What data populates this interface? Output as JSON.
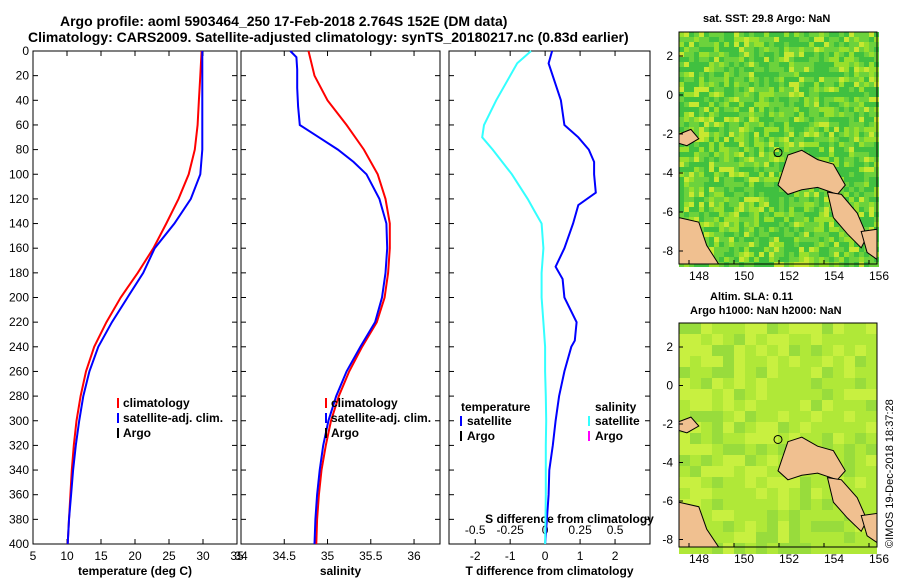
{
  "header": {
    "line1": "Argo profile: aoml 5903464_250 17-Feb-2018 2.764S 152E (DM data)",
    "line2": "Climatology: CARS2009. Satellite-adjusted climatology: synTS_20180217.nc (0.83d earlier)"
  },
  "credit": "©IMOS 19-Dec-2018 18:37:28",
  "colors": {
    "red": "#ff0000",
    "blue": "#0000ff",
    "black": "#000000",
    "cyan": "#33ffff",
    "magenta": "#ff00ff"
  },
  "chart_data": [
    {
      "name": "temperature-profile",
      "type": "line",
      "xlabel": "temperature (deg C)",
      "ylabel": "",
      "xlim": [
        5,
        35
      ],
      "ylim": [
        400,
        0
      ],
      "xticks": [
        5,
        10,
        15,
        20,
        25,
        30,
        35
      ],
      "yticks": [
        0,
        20,
        40,
        60,
        80,
        100,
        120,
        140,
        160,
        180,
        200,
        220,
        240,
        260,
        280,
        300,
        320,
        340,
        360,
        380,
        400
      ],
      "legend": [
        "climatology",
        "satellite-adj. clim.",
        "Argo"
      ],
      "legend_colors": [
        "#ff0000",
        "#0000ff",
        "#000000"
      ],
      "series": [
        {
          "name": "climatology",
          "color": "#ff0000",
          "depth": [
            0,
            20,
            40,
            60,
            80,
            100,
            120,
            140,
            160,
            180,
            200,
            220,
            240,
            260,
            280,
            300,
            320,
            340,
            360,
            380,
            400
          ],
          "values": [
            29.8,
            29.6,
            29.4,
            29.2,
            28.8,
            27.9,
            26.4,
            24.6,
            22.7,
            20.4,
            17.9,
            15.8,
            14.0,
            12.8,
            12.0,
            11.4,
            11.0,
            10.7,
            10.5,
            10.3,
            10.1
          ]
        },
        {
          "name": "satellite-adj. clim.",
          "color": "#0000ff",
          "depth": [
            0,
            20,
            40,
            60,
            80,
            100,
            120,
            140,
            160,
            180,
            200,
            220,
            240,
            260,
            280,
            300,
            320,
            340,
            360,
            380,
            400
          ],
          "values": [
            29.9,
            29.9,
            29.9,
            29.9,
            29.9,
            29.6,
            28.2,
            25.8,
            22.9,
            21.2,
            18.9,
            16.6,
            14.6,
            13.3,
            12.4,
            11.8,
            11.3,
            10.9,
            10.6,
            10.3,
            10.1
          ]
        }
      ]
    },
    {
      "name": "salinity-profile",
      "type": "line",
      "xlabel": "salinity",
      "xlim": [
        34,
        36.3
      ],
      "ylim": [
        400,
        0
      ],
      "xticks": [
        34,
        34.5,
        35,
        35.5,
        36
      ],
      "legend": [
        "climatology",
        "satellite-adj. clim.",
        "Argo"
      ],
      "legend_colors": [
        "#ff0000",
        "#0000ff",
        "#000000"
      ],
      "series": [
        {
          "name": "climatology",
          "color": "#ff0000",
          "depth": [
            0,
            20,
            40,
            60,
            80,
            100,
            120,
            140,
            160,
            180,
            200,
            220,
            240,
            260,
            280,
            300,
            320,
            340,
            360,
            380,
            400
          ],
          "values": [
            34.78,
            34.85,
            35.0,
            35.22,
            35.42,
            35.58,
            35.67,
            35.72,
            35.72,
            35.7,
            35.66,
            35.57,
            35.4,
            35.25,
            35.13,
            35.04,
            34.98,
            34.93,
            34.9,
            34.88,
            34.87
          ]
        },
        {
          "name": "satellite-adj. clim.",
          "color": "#0000ff",
          "depth": [
            0,
            5,
            15,
            30,
            45,
            60,
            70,
            80,
            90,
            100,
            120,
            140,
            160,
            180,
            200,
            220,
            240,
            260,
            280,
            300,
            320,
            340,
            360,
            380,
            400
          ],
          "values": [
            34.57,
            34.64,
            34.65,
            34.65,
            34.66,
            34.68,
            34.9,
            35.12,
            35.3,
            35.45,
            35.6,
            35.68,
            35.69,
            35.67,
            35.63,
            35.55,
            35.38,
            35.22,
            35.1,
            35.01,
            34.95,
            34.91,
            34.88,
            34.86,
            34.85
          ]
        }
      ]
    },
    {
      "name": "difference-profile",
      "type": "line",
      "xlabel": "T difference from climatology",
      "top_axis_label": "S difference from climatology",
      "xlim": [
        -2.75,
        3
      ],
      "ylim": [
        400,
        0
      ],
      "xticks": [
        -2,
        -1,
        0,
        1,
        2
      ],
      "top_ticks": [
        "-0.5",
        "-0.25",
        "0",
        "0.25",
        "0.5"
      ],
      "top_tick_positions": [
        -2,
        -1,
        0,
        1,
        2
      ],
      "legend_left_title": "temperature",
      "legend_left": [
        "satellite",
        "Argo"
      ],
      "legend_left_colors": [
        "#0000ff",
        "#000000"
      ],
      "legend_right_title": "salinity",
      "legend_right": [
        "satellite",
        "Argo"
      ],
      "legend_right_colors": [
        "#33ffff",
        "#ff00ff"
      ],
      "series": [
        {
          "name": "temperature satellite",
          "color": "#0000ff",
          "depth": [
            0,
            10,
            40,
            60,
            70,
            80,
            90,
            100,
            115,
            125,
            140,
            160,
            175,
            185,
            200,
            220,
            235,
            240,
            260,
            280,
            300,
            320,
            340,
            360,
            380,
            400
          ],
          "values": [
            0.2,
            0.1,
            0.45,
            0.55,
            0.95,
            1.25,
            1.4,
            1.4,
            1.45,
            0.95,
            0.8,
            0.55,
            0.3,
            0.5,
            0.55,
            0.9,
            0.85,
            0.75,
            0.55,
            0.4,
            0.3,
            0.22,
            0.12,
            0.1,
            0.05,
            0.0
          ]
        },
        {
          "name": "salinity satellite",
          "color": "#33ffff",
          "depth": [
            0,
            10,
            40,
            60,
            70,
            80,
            100,
            120,
            130,
            140,
            160,
            180,
            200,
            220,
            240,
            260,
            280,
            300,
            320,
            340,
            360,
            380,
            400
          ],
          "values": [
            -0.4,
            -0.8,
            -1.4,
            -1.75,
            -1.8,
            -1.5,
            -0.95,
            -0.5,
            -0.3,
            -0.1,
            -0.05,
            -0.1,
            -0.1,
            -0.05,
            0.0,
            0.0,
            0.02,
            0.03,
            0.02,
            0.02,
            0.02,
            0.01,
            0.0
          ]
        }
      ]
    }
  ],
  "maps": [
    {
      "name": "sst-map",
      "title": "sat. SST: 29.8 Argo: NaN",
      "xticks": [
        "148",
        "150",
        "152",
        "154",
        "156"
      ],
      "yticks": [
        "2",
        "0",
        "-2",
        "-4",
        "-6",
        "-8"
      ]
    },
    {
      "name": "sla-map",
      "title_line1": "Altim. SLA: 0.11",
      "title_line2": "Argo h1000: NaN h2000: NaN",
      "xticks": [
        "148",
        "150",
        "152",
        "154",
        "156"
      ],
      "yticks": [
        "2",
        "0",
        "-2",
        "-4",
        "-6",
        "-8"
      ]
    }
  ]
}
